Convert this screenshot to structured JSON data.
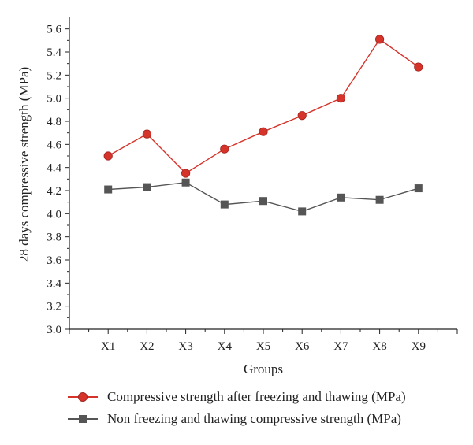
{
  "chart_data": {
    "type": "line",
    "categories": [
      "X1",
      "X2",
      "X3",
      "X4",
      "X5",
      "X6",
      "X7",
      "X8",
      "X9"
    ],
    "series": [
      {
        "name": "Compressive strength after freezing and thawing (MPa)",
        "values": [
          4.5,
          4.69,
          4.35,
          4.56,
          4.71,
          4.85,
          5.0,
          5.51,
          5.27
        ],
        "color": "#d6332a",
        "marker": "circle"
      },
      {
        "name": "Non freezing and thawing compressive strength (MPa)",
        "values": [
          4.21,
          4.23,
          4.27,
          4.08,
          4.11,
          4.02,
          4.14,
          4.12,
          4.22
        ],
        "color": "#555555",
        "marker": "square"
      }
    ],
    "xlabel": "Groups",
    "ylabel": "28 days compressive strength (MPa)",
    "ylim": [
      3.0,
      5.7
    ],
    "yticks": [
      "3.0",
      "3.2",
      "3.4",
      "3.6",
      "3.8",
      "4.0",
      "4.2",
      "4.4",
      "4.6",
      "4.8",
      "5.0",
      "5.2",
      "5.4",
      "5.6"
    ],
    "grid": false,
    "legend_position": "bottom"
  }
}
